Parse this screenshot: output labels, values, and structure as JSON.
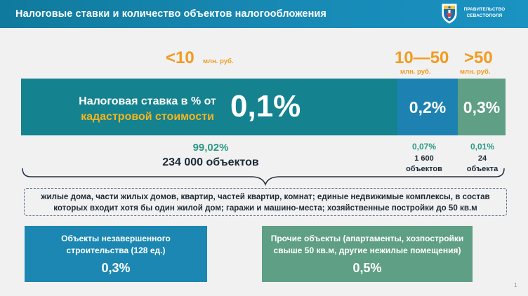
{
  "header": {
    "title": "Налоговые ставки и количество объектов налогообложения",
    "brand_line1": "ПРАВИТЕЛЬСТВО",
    "brand_line2": "СЕВАСТОПОЛЯ",
    "emblem_icon": "city-coat-of-arms-icon"
  },
  "tiers": {
    "low": {
      "value": "<10",
      "unit": "млн. руб."
    },
    "mid": {
      "value": "10—50",
      "unit": "млн. руб."
    },
    "high": {
      "value": ">50",
      "unit": "млн. руб."
    }
  },
  "rate_bar": {
    "label_line1": "Налоговая ставка в % от",
    "label_line2": "кадастровой стоимости",
    "low_rate": "0,1%",
    "mid_rate": "0,2%",
    "high_rate": "0,3%"
  },
  "stats": {
    "low": {
      "share": "99,02%",
      "count": "234 000 объектов"
    },
    "mid": {
      "share": "0,07%",
      "count_line1": "1 600",
      "count_line2": "объектов"
    },
    "high": {
      "share": "0,01%",
      "count_line1": "24",
      "count_line2": "объекта"
    }
  },
  "description": {
    "line1": "жилые дома, части жилых домов, квартир, частей квартир, комнат; единые недвижимые комплексы, в состав",
    "line2": "которых входит хотя бы один жилой дом; гаражи и машино-места; хозяйственные постройки до 50 кв.м"
  },
  "cards": {
    "left": {
      "line1": "Объекты незавершенного",
      "line2": "строительства (128 ед.)",
      "rate": "0,3%"
    },
    "right": {
      "line1": "Прочие объекты (апартаменты, хозпостройки",
      "line2": "свыше 50 кв.м, другие нежилые помещения)",
      "rate": "0,5%"
    }
  },
  "page_number": "1",
  "colors": {
    "header": "#1787b1",
    "accent_orange": "#f29b1f",
    "bar_teal": "#14828f",
    "bar_blue": "#1d82b2",
    "bar_green": "#5f9f85",
    "share_green": "#2b9a84"
  }
}
